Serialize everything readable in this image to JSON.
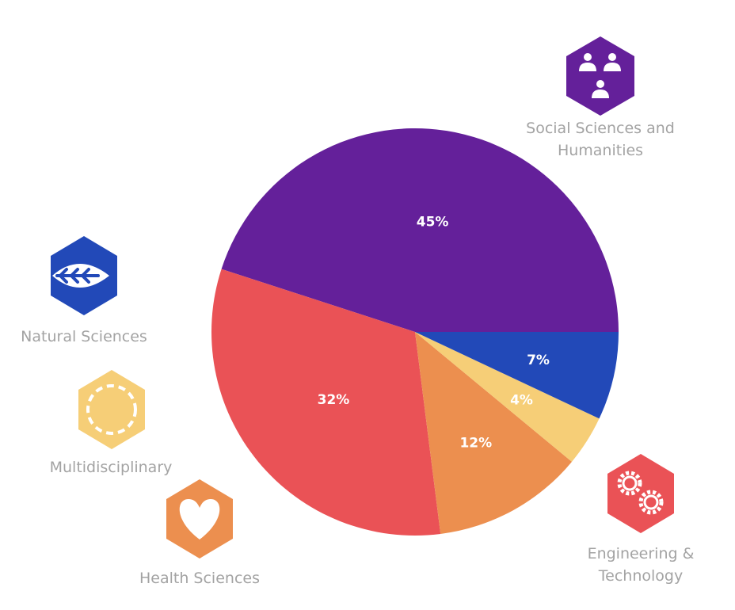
{
  "chart_data": {
    "type": "pie",
    "categories": [
      "Social Sciences and Humanities",
      "Engineering & Technology",
      "Health Sciences",
      "Multidisciplinary",
      "Natural Sciences"
    ],
    "values": [
      45,
      32,
      12,
      4,
      7
    ],
    "value_labels": [
      "45%",
      "32%",
      "12%",
      "4%",
      "7%"
    ],
    "colors": [
      "#64209a",
      "#ea5256",
      "#ec8f4f",
      "#f6ce77",
      "#2249b8"
    ],
    "start": "3 o'clock, counter-clockwise",
    "legend": "icon badges around the pie",
    "icons": [
      "people-icon",
      "gears-icon",
      "heart-icon",
      "dashed-circle-icon",
      "leaf-icon"
    ]
  },
  "labels": {
    "social_line1": "Social Sciences and",
    "social_line2": "Humanities",
    "engineering_line1": "Engineering &",
    "engineering_line2": "Technology",
    "health": "Health Sciences",
    "multi": "Multidisciplinary",
    "natural": "Natural Sciences"
  }
}
